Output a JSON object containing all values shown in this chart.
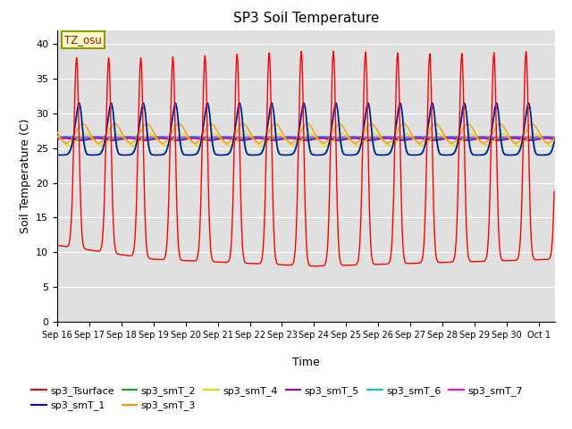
{
  "title": "SP3 Soil Temperature",
  "ylabel": "Soil Temperature (C)",
  "xlabel": "Time",
  "tz_label": "TZ_osu",
  "ylim": [
    0,
    42
  ],
  "yticks": [
    0,
    5,
    10,
    15,
    20,
    25,
    30,
    35,
    40
  ],
  "background_color": "#e0e0e0",
  "series_colors": {
    "sp3_Tsurface": "#ff0000",
    "sp3_smT_1": "#0000cc",
    "sp3_smT_2": "#00bb00",
    "sp3_smT_3": "#ff9900",
    "sp3_smT_4": "#dddd00",
    "sp3_smT_5": "#aa00aa",
    "sp3_smT_6": "#00cccc",
    "sp3_smT_7": "#ff00ff"
  },
  "legend_items": [
    "sp3_Tsurface",
    "sp3_smT_1",
    "sp3_smT_2",
    "sp3_smT_3",
    "sp3_smT_4",
    "sp3_smT_5",
    "sp3_smT_6",
    "sp3_smT_7"
  ]
}
